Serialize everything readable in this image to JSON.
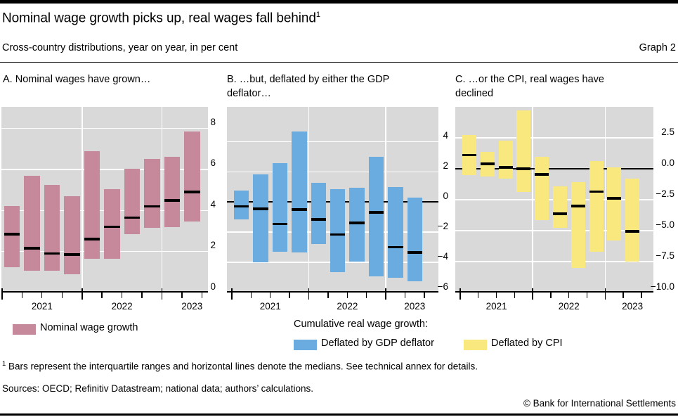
{
  "header": {
    "title": "Nominal wage growth picks up, real wages fall behind",
    "title_sup": "1",
    "subtitle": "Cross-country distributions, year on year, in per cent",
    "graph_label": "Graph 2"
  },
  "plot_bg_color": "#d9d9d9",
  "gridline_color": "#ffffff",
  "median_color": "#000000",
  "chart_data": [
    {
      "type": "bar",
      "panel_label": "A. Nominal wages have grown…",
      "series_name": "Nominal wage growth",
      "color": "#c6899c",
      "ylim": [
        0,
        9.05
      ],
      "zero_line": false,
      "grid": true,
      "yticks": [
        {
          "v": 8,
          "label": "8"
        },
        {
          "v": 6,
          "label": "6"
        },
        {
          "v": 4,
          "label": "4"
        },
        {
          "v": 2,
          "label": "2"
        },
        {
          "v": 0,
          "label": "0"
        }
      ],
      "x_year_labels": [
        "2021",
        "2022",
        "2023"
      ],
      "bars": [
        {
          "quarter": "2021 Q1",
          "lo": 1.25,
          "hi": 4.2,
          "median": 2.85
        },
        {
          "quarter": "2021 Q2",
          "lo": 1.05,
          "hi": 5.7,
          "median": 2.15
        },
        {
          "quarter": "2021 Q3",
          "lo": 1.05,
          "hi": 5.25,
          "median": 1.9
        },
        {
          "quarter": "2021 Q4",
          "lo": 0.9,
          "hi": 4.7,
          "median": 1.85
        },
        {
          "quarter": "2022 Q1",
          "lo": 1.65,
          "hi": 6.9,
          "median": 2.6
        },
        {
          "quarter": "2022 Q2",
          "lo": 1.65,
          "hi": 5.05,
          "median": 3.2
        },
        {
          "quarter": "2022 Q3",
          "lo": 2.85,
          "hi": 6.05,
          "median": 3.65
        },
        {
          "quarter": "2022 Q4",
          "lo": 3.15,
          "hi": 6.5,
          "median": 4.2
        },
        {
          "quarter": "2023 Q1",
          "lo": 3.2,
          "hi": 6.6,
          "median": 4.5
        },
        {
          "quarter": "2023 Q2",
          "lo": 3.45,
          "hi": 7.85,
          "median": 4.9
        }
      ]
    },
    {
      "type": "bar",
      "panel_label": "B. …but, deflated by either the GDP\ndeflator…",
      "series_name": "Deflated by GDP deflator",
      "color": "#6aacdf",
      "ylim": [
        -6,
        6.3
      ],
      "zero_line": true,
      "grid": true,
      "yticks": [
        {
          "v": 4,
          "label": "4"
        },
        {
          "v": 2,
          "label": "2"
        },
        {
          "v": 0,
          "label": "0"
        },
        {
          "v": -2,
          "label": "−2"
        },
        {
          "v": -4,
          "label": "−4"
        },
        {
          "v": -6,
          "label": "−6"
        }
      ],
      "x_year_labels": [
        "2021",
        "2022",
        "2023"
      ],
      "bars": [
        {
          "quarter": "2021 Q1",
          "lo": -1.15,
          "hi": 0.75,
          "median": -0.3
        },
        {
          "quarter": "2021 Q2",
          "lo": -4.0,
          "hi": 1.85,
          "median": -0.45
        },
        {
          "quarter": "2021 Q3",
          "lo": -3.3,
          "hi": 2.55,
          "median": -1.45
        },
        {
          "quarter": "2021 Q4",
          "lo": -3.35,
          "hi": 4.65,
          "median": -0.5
        },
        {
          "quarter": "2022 Q1",
          "lo": -2.8,
          "hi": 1.25,
          "median": -1.15
        },
        {
          "quarter": "2022 Q2",
          "lo": -4.65,
          "hi": 0.85,
          "median": -2.15
        },
        {
          "quarter": "2022 Q3",
          "lo": -3.95,
          "hi": 0.95,
          "median": -1.4
        },
        {
          "quarter": "2022 Q4",
          "lo": -4.95,
          "hi": 3.0,
          "median": -0.7
        },
        {
          "quarter": "2023 Q1",
          "lo": -5.0,
          "hi": 1.0,
          "median": -3.0
        },
        {
          "quarter": "2023 Q2",
          "lo": -5.25,
          "hi": 0.3,
          "median": -3.35
        }
      ]
    },
    {
      "type": "bar",
      "panel_label": "C. …or the CPI, real wages have\ndeclined",
      "series_name": "Deflated by CPI",
      "color": "#f8e87e",
      "ylim": [
        -10,
        5.0
      ],
      "zero_line": true,
      "grid": true,
      "yticks": [
        {
          "v": 2.5,
          "label": "2.5"
        },
        {
          "v": 0,
          "label": "0.0"
        },
        {
          "v": -2.5,
          "label": "−2.5"
        },
        {
          "v": -5,
          "label": "−5.0"
        },
        {
          "v": -7.5,
          "label": "−7.5"
        },
        {
          "v": -10,
          "label": "−10.0"
        }
      ],
      "x_year_labels": [
        "2021",
        "2022",
        "2023"
      ],
      "bars": [
        {
          "quarter": "2021 Q1",
          "lo": -0.5,
          "hi": 2.75,
          "median": 1.1
        },
        {
          "quarter": "2021 Q2",
          "lo": -0.6,
          "hi": 1.35,
          "median": 0.4
        },
        {
          "quarter": "2021 Q3",
          "lo": -0.8,
          "hi": 2.25,
          "median": 0.1
        },
        {
          "quarter": "2021 Q4",
          "lo": -1.85,
          "hi": 4.7,
          "median": 0.0
        },
        {
          "quarter": "2022 Q1",
          "lo": -4.15,
          "hi": 0.95,
          "median": -0.45
        },
        {
          "quarter": "2022 Q2",
          "lo": -4.75,
          "hi": -1.4,
          "median": -3.65
        },
        {
          "quarter": "2022 Q3",
          "lo": -8.0,
          "hi": -1.1,
          "median": -3.0
        },
        {
          "quarter": "2022 Q4",
          "lo": -6.7,
          "hi": 0.6,
          "median": -1.85
        },
        {
          "quarter": "2023 Q1",
          "lo": -5.8,
          "hi": 0.1,
          "median": -2.4
        },
        {
          "quarter": "2023 Q2",
          "lo": -7.5,
          "hi": -0.8,
          "median": -5.05
        }
      ]
    }
  ],
  "legend": {
    "panel_a": {
      "swatch_color": "#c6899c",
      "label": "Nominal wage growth"
    },
    "panel_bc": {
      "heading": "Cumulative real wage growth:",
      "items": [
        {
          "swatch_color": "#6aacdf",
          "label": "Deflated by GDP deflator"
        },
        {
          "swatch_color": "#f8e87e",
          "label": "Deflated by CPI"
        }
      ]
    }
  },
  "footnote": {
    "sup": "1",
    "text": " Bars represent the interquartile ranges and horizontal lines denote the medians. See technical annex for details."
  },
  "sources": "Sources: OECD; Refinitiv Datastream; national data; authors’ calculations.",
  "copyright": "© Bank for International Settlements"
}
